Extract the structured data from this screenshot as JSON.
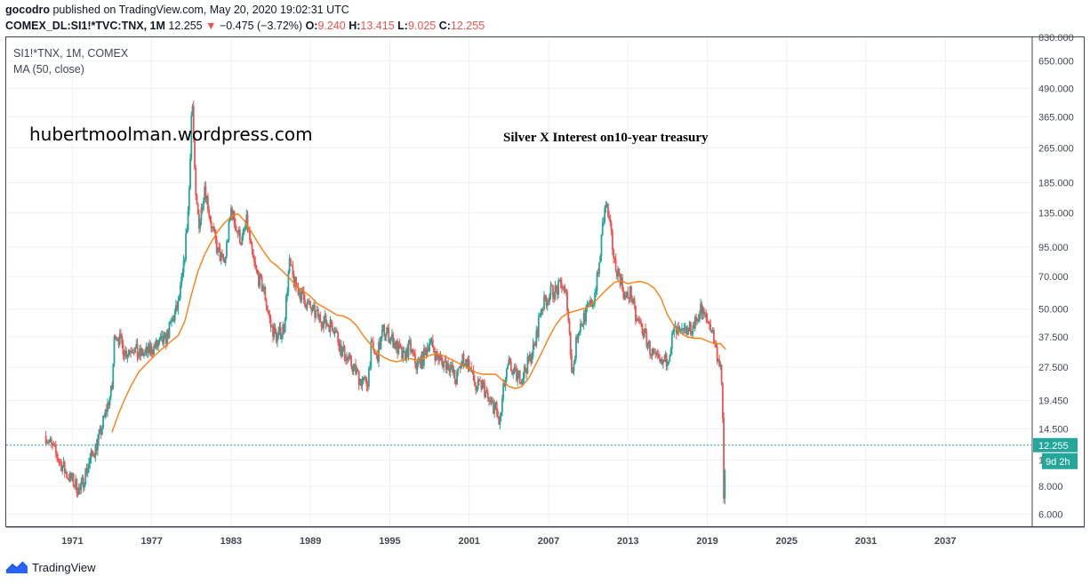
{
  "header": {
    "author": "gocodro",
    "published_text": "published on TradingView.com, May 20, 2020 19:02:31 UTC",
    "symbol_line": "COMEX_DL:SI1!*TVC:TNX, 1M",
    "last": "12.255",
    "change_arrow": "▼",
    "change": "−0.475 (−3.72%)",
    "o_label": "O:",
    "o_value": "9.240",
    "h_label": "H:",
    "h_value": "13.415",
    "l_label": "L:",
    "l_value": "9.025",
    "c_label": "C:",
    "c_value": "12.255"
  },
  "legend": {
    "series": "SI1!*TNX, 1M, COMEX",
    "indicator": "MA (50, close)"
  },
  "watermark": "hubertmoolman.wordpress.com",
  "footer": {
    "brand": "TradingView"
  },
  "colors": {
    "up": "#26a69a",
    "down": "#ef5350",
    "ma": "#ff7f0e",
    "price_line": "#26a69a",
    "grid": "#eef0f3",
    "axis_text": "#434651"
  },
  "chart_data": {
    "type": "candlestick",
    "title": "Silver X Interest on10-year treasury",
    "scale": "log",
    "ylim": [
      5.3,
      830
    ],
    "xlim": [
      1966.0,
      2043.5
    ],
    "y_ticks": [
      "6.000",
      "8.000",
      "10.500",
      "14.500",
      "19.450",
      "27.500",
      "37.500",
      "50.000",
      "70.000",
      "95.000",
      "135.000",
      "185.000",
      "265.000",
      "365.000",
      "490.000",
      "650.000",
      "830.000"
    ],
    "x_ticks": [
      "1971",
      "1977",
      "1983",
      "1989",
      "1995",
      "2001",
      "2007",
      "2013",
      "2019",
      "2025",
      "2031",
      "2037"
    ],
    "current_price": {
      "value": 12.255,
      "label": "12.255",
      "countdown": "9d 2h"
    },
    "series": [
      {
        "name": "SI1!*TNX",
        "kind": "close",
        "points": [
          [
            1969.0,
            13.5
          ],
          [
            1970.0,
            10.5
          ],
          [
            1970.6,
            9.0
          ],
          [
            1971.0,
            8.5
          ],
          [
            1971.6,
            7.6
          ],
          [
            1972.0,
            9.3
          ],
          [
            1972.6,
            11.5
          ],
          [
            1973.0,
            13.0
          ],
          [
            1973.6,
            18.0
          ],
          [
            1974.0,
            22.0
          ],
          [
            1974.2,
            40.0
          ],
          [
            1974.6,
            36.0
          ],
          [
            1975.0,
            32.0
          ],
          [
            1975.6,
            34.0
          ],
          [
            1976.0,
            31.0
          ],
          [
            1976.6,
            32.0
          ],
          [
            1977.0,
            33.0
          ],
          [
            1977.6,
            35.0
          ],
          [
            1978.0,
            36.0
          ],
          [
            1978.6,
            45.0
          ],
          [
            1979.0,
            52.0
          ],
          [
            1979.4,
            75.0
          ],
          [
            1979.8,
            150.0
          ],
          [
            1980.05,
            470.0
          ],
          [
            1980.3,
            160.0
          ],
          [
            1980.6,
            120.0
          ],
          [
            1981.0,
            180.0
          ],
          [
            1981.5,
            120.0
          ],
          [
            1982.0,
            90.0
          ],
          [
            1982.5,
            80.0
          ],
          [
            1983.0,
            140.0
          ],
          [
            1983.4,
            115.0
          ],
          [
            1983.8,
            100.0
          ],
          [
            1984.2,
            125.0
          ],
          [
            1984.6,
            85.0
          ],
          [
            1985.0,
            70.0
          ],
          [
            1985.5,
            60.0
          ],
          [
            1986.0,
            42.0
          ],
          [
            1986.5,
            37.0
          ],
          [
            1987.0,
            42.0
          ],
          [
            1987.4,
            80.0
          ],
          [
            1987.8,
            65.0
          ],
          [
            1988.3,
            58.0
          ],
          [
            1988.8,
            52.0
          ],
          [
            1989.3,
            48.0
          ],
          [
            1989.8,
            45.0
          ],
          [
            1990.3,
            43.0
          ],
          [
            1990.8,
            42.0
          ],
          [
            1991.3,
            33.0
          ],
          [
            1991.8,
            30.0
          ],
          [
            1992.3,
            27.0
          ],
          [
            1992.8,
            24.0
          ],
          [
            1993.3,
            23.0
          ],
          [
            1993.6,
            34.0
          ],
          [
            1994.0,
            30.0
          ],
          [
            1994.5,
            40.0
          ],
          [
            1995.0,
            38.0
          ],
          [
            1995.5,
            34.0
          ],
          [
            1996.0,
            30.0
          ],
          [
            1996.5,
            34.0
          ],
          [
            1997.0,
            28.0
          ],
          [
            1997.5,
            30.0
          ],
          [
            1998.0,
            36.0
          ],
          [
            1998.5,
            31.0
          ],
          [
            1999.0,
            29.0
          ],
          [
            1999.5,
            28.0
          ],
          [
            2000.0,
            24.0
          ],
          [
            2000.5,
            30.0
          ],
          [
            2001.0,
            28.0
          ],
          [
            2001.5,
            22.0
          ],
          [
            2002.0,
            23.0
          ],
          [
            2002.5,
            19.0
          ],
          [
            2003.0,
            18.0
          ],
          [
            2003.3,
            15.0
          ],
          [
            2003.6,
            22.0
          ],
          [
            2004.0,
            28.0
          ],
          [
            2004.5,
            25.0
          ],
          [
            2005.0,
            25.0
          ],
          [
            2005.5,
            29.0
          ],
          [
            2006.0,
            35.0
          ],
          [
            2006.4,
            50.0
          ],
          [
            2006.8,
            55.0
          ],
          [
            2007.2,
            60.0
          ],
          [
            2007.6,
            60.0
          ],
          [
            2008.0,
            65.0
          ],
          [
            2008.4,
            55.0
          ],
          [
            2008.8,
            25.0
          ],
          [
            2009.2,
            40.0
          ],
          [
            2009.6,
            45.0
          ],
          [
            2010.0,
            50.0
          ],
          [
            2010.4,
            55.0
          ],
          [
            2010.8,
            75.0
          ],
          [
            2011.1,
            120.0
          ],
          [
            2011.35,
            150.0
          ],
          [
            2011.7,
            110.0
          ],
          [
            2012.0,
            80.0
          ],
          [
            2012.4,
            70.0
          ],
          [
            2012.8,
            55.0
          ],
          [
            2013.2,
            60.0
          ],
          [
            2013.6,
            45.0
          ],
          [
            2014.0,
            42.0
          ],
          [
            2014.5,
            35.0
          ],
          [
            2015.0,
            30.0
          ],
          [
            2015.5,
            28.0
          ],
          [
            2016.0,
            30.0
          ],
          [
            2016.5,
            40.0
          ],
          [
            2017.0,
            38.0
          ],
          [
            2017.5,
            40.0
          ],
          [
            2018.0,
            42.0
          ],
          [
            2018.5,
            50.0
          ],
          [
            2018.9,
            45.0
          ],
          [
            2019.3,
            42.0
          ],
          [
            2019.7,
            32.0
          ],
          [
            2020.0,
            28.0
          ],
          [
            2020.15,
            18.0
          ],
          [
            2020.25,
            7.0
          ],
          [
            2020.4,
            12.255
          ]
        ]
      },
      {
        "name": "MA (50, close)",
        "kind": "line",
        "points": [
          [
            1974.0,
            14.0
          ],
          [
            1974.5,
            17.0
          ],
          [
            1975.0,
            20.0
          ],
          [
            1975.5,
            23.0
          ],
          [
            1976.0,
            26.0
          ],
          [
            1976.5,
            28.0
          ],
          [
            1977.0,
            30.0
          ],
          [
            1977.5,
            32.0
          ],
          [
            1978.0,
            34.0
          ],
          [
            1978.5,
            36.0
          ],
          [
            1979.0,
            38.0
          ],
          [
            1979.5,
            44.0
          ],
          [
            1980.0,
            58.0
          ],
          [
            1980.5,
            74.0
          ],
          [
            1981.0,
            88.0
          ],
          [
            1981.5,
            100.0
          ],
          [
            1982.0,
            112.0
          ],
          [
            1982.5,
            122.0
          ],
          [
            1983.0,
            130.0
          ],
          [
            1983.5,
            134.0
          ],
          [
            1984.0,
            125.0
          ],
          [
            1984.5,
            112.0
          ],
          [
            1985.0,
            100.0
          ],
          [
            1985.5,
            90.0
          ],
          [
            1986.0,
            82.0
          ],
          [
            1986.5,
            78.0
          ],
          [
            1987.0,
            73.0
          ],
          [
            1987.5,
            68.0
          ],
          [
            1988.0,
            63.0
          ],
          [
            1988.5,
            60.0
          ],
          [
            1989.0,
            57.0
          ],
          [
            1989.5,
            53.0
          ],
          [
            1990.0,
            51.0
          ],
          [
            1990.5,
            49.0
          ],
          [
            1991.0,
            47.0
          ],
          [
            1991.5,
            46.5
          ],
          [
            1992.0,
            45.0
          ],
          [
            1992.5,
            42.0
          ],
          [
            1993.0,
            38.0
          ],
          [
            1993.5,
            35.0
          ],
          [
            1994.0,
            32.0
          ],
          [
            1994.5,
            30.5
          ],
          [
            1995.0,
            29.5
          ],
          [
            1995.5,
            29.0
          ],
          [
            1996.0,
            29.5
          ],
          [
            1996.5,
            30.0
          ],
          [
            1997.0,
            29.5
          ],
          [
            1997.5,
            30.0
          ],
          [
            1998.0,
            31.0
          ],
          [
            1998.5,
            31.5
          ],
          [
            1999.0,
            31.0
          ],
          [
            1999.5,
            30.0
          ],
          [
            2000.0,
            29.0
          ],
          [
            2000.5,
            28.0
          ],
          [
            2001.0,
            27.0
          ],
          [
            2001.5,
            26.0
          ],
          [
            2002.0,
            25.5
          ],
          [
            2002.5,
            25.5
          ],
          [
            2003.0,
            25.5
          ],
          [
            2003.5,
            24.0
          ],
          [
            2004.0,
            22.5
          ],
          [
            2004.5,
            22.0
          ],
          [
            2005.0,
            22.5
          ],
          [
            2005.5,
            24.5
          ],
          [
            2006.0,
            28.0
          ],
          [
            2006.5,
            32.0
          ],
          [
            2007.0,
            37.0
          ],
          [
            2007.5,
            42.0
          ],
          [
            2008.0,
            46.0
          ],
          [
            2008.5,
            48.0
          ],
          [
            2009.0,
            49.0
          ],
          [
            2009.5,
            50.0
          ],
          [
            2010.0,
            51.0
          ],
          [
            2010.5,
            54.0
          ],
          [
            2011.0,
            58.0
          ],
          [
            2011.5,
            62.0
          ],
          [
            2012.0,
            66.0
          ],
          [
            2012.5,
            67.0
          ],
          [
            2013.0,
            65.0
          ],
          [
            2013.5,
            66.0
          ],
          [
            2014.0,
            66.5
          ],
          [
            2014.5,
            65.0
          ],
          [
            2015.0,
            62.0
          ],
          [
            2015.5,
            56.0
          ],
          [
            2016.0,
            47.0
          ],
          [
            2016.5,
            42.0
          ],
          [
            2017.0,
            39.0
          ],
          [
            2017.5,
            37.5
          ],
          [
            2018.0,
            37.0
          ],
          [
            2018.5,
            37.0
          ],
          [
            2019.0,
            36.0
          ],
          [
            2019.5,
            35.0
          ],
          [
            2020.0,
            35.0
          ],
          [
            2020.4,
            33.0
          ]
        ]
      }
    ]
  }
}
